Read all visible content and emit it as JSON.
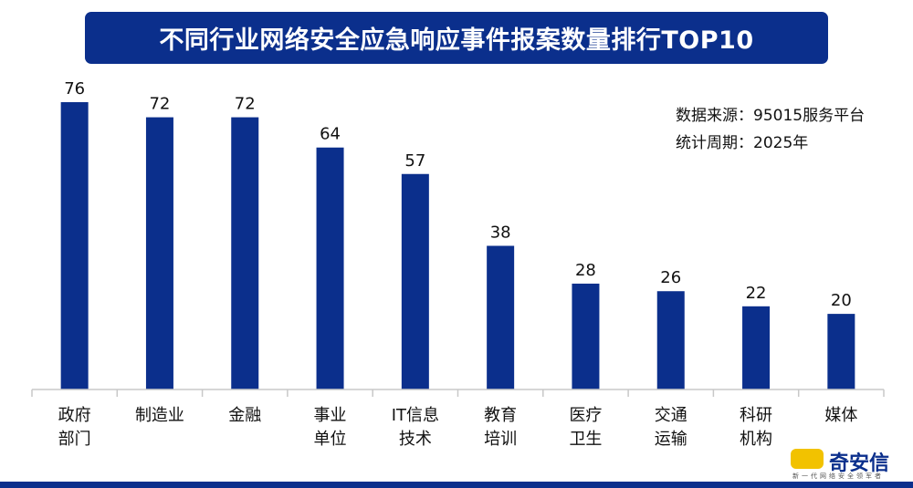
{
  "header": {
    "title": "不同行业网络安全应急响应事件报案数量排行TOP10"
  },
  "source_note": {
    "line1": "数据来源：95015服务平台",
    "line2": "统计周期：2025年"
  },
  "chart_data": {
    "type": "bar",
    "title": "不同行业网络安全应急响应事件报案数量排行TOP10",
    "categories": [
      [
        "政府",
        "部门"
      ],
      [
        "制造业"
      ],
      [
        "金融"
      ],
      [
        "事业",
        "单位"
      ],
      [
        "IT信息",
        "技术"
      ],
      [
        "教育",
        "培训"
      ],
      [
        "医疗",
        "卫生"
      ],
      [
        "交通",
        "运输"
      ],
      [
        "科研",
        "机构"
      ],
      [
        "媒体"
      ]
    ],
    "values": [
      76,
      72,
      72,
      64,
      57,
      38,
      28,
      26,
      22,
      20
    ],
    "ylim": [
      0,
      80
    ],
    "grid": false,
    "bar_color": "#0b2f8c"
  },
  "logo": {
    "name": "奇安信",
    "tagline": "新一代网络安全领军者"
  },
  "colors": {
    "accent": "#0b2f8c",
    "logo_badge": "#f2c200"
  }
}
